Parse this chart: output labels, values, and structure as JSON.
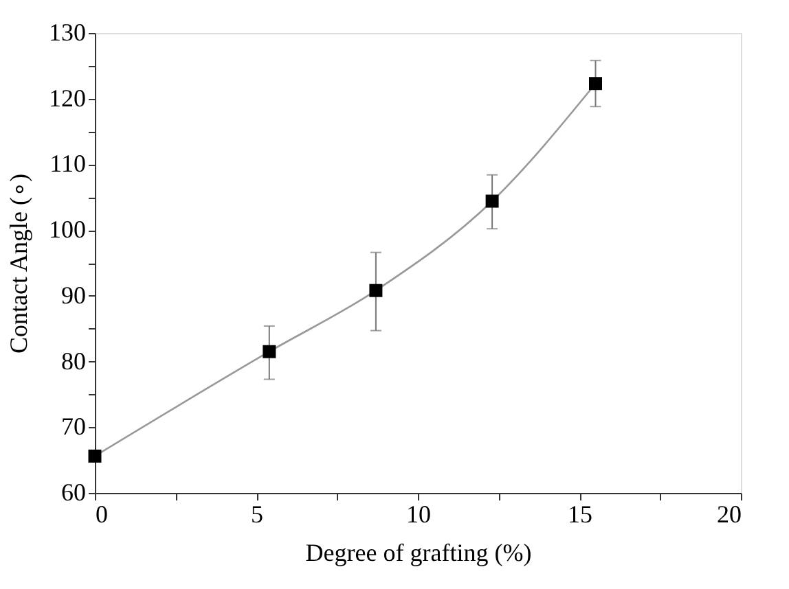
{
  "chart_data": {
    "type": "line",
    "xlabel": "Degree of grafting (%)",
    "ylabel": "Contact Angle (∘)",
    "x": [
      0,
      5.4,
      8.7,
      12.3,
      15.5
    ],
    "series": [
      {
        "color": "#000000",
        "values": [
          65.6,
          81.5,
          90.8,
          104.4,
          122.3
        ],
        "errors": [
          null,
          [
            77.3,
            85.4
          ],
          [
            84.7,
            96.6
          ],
          [
            100.2,
            108.4
          ],
          [
            118.8,
            125.8
          ]
        ]
      }
    ],
    "xlim": [
      0,
      20
    ],
    "ylim": [
      60,
      130
    ],
    "xticks": [
      0,
      {
        "value": 2.5,
        "label": null
      },
      5,
      {
        "value": 7.5,
        "label": null
      },
      10,
      {
        "value": 12.5,
        "label": null
      },
      15,
      {
        "value": 17.5,
        "label": null
      },
      20
    ],
    "yticks": [
      60,
      {
        "value": 65,
        "label": null
      },
      70,
      {
        "value": 75,
        "label": null
      },
      80,
      {
        "value": 85,
        "label": null
      },
      90,
      {
        "value": 95,
        "label": null
      },
      100,
      {
        "value": 105,
        "label": null
      },
      110,
      {
        "value": 115,
        "label": null
      },
      120,
      {
        "value": 125,
        "label": null
      },
      130
    ],
    "marker": "square",
    "line_style": "solid",
    "grid": false
  }
}
